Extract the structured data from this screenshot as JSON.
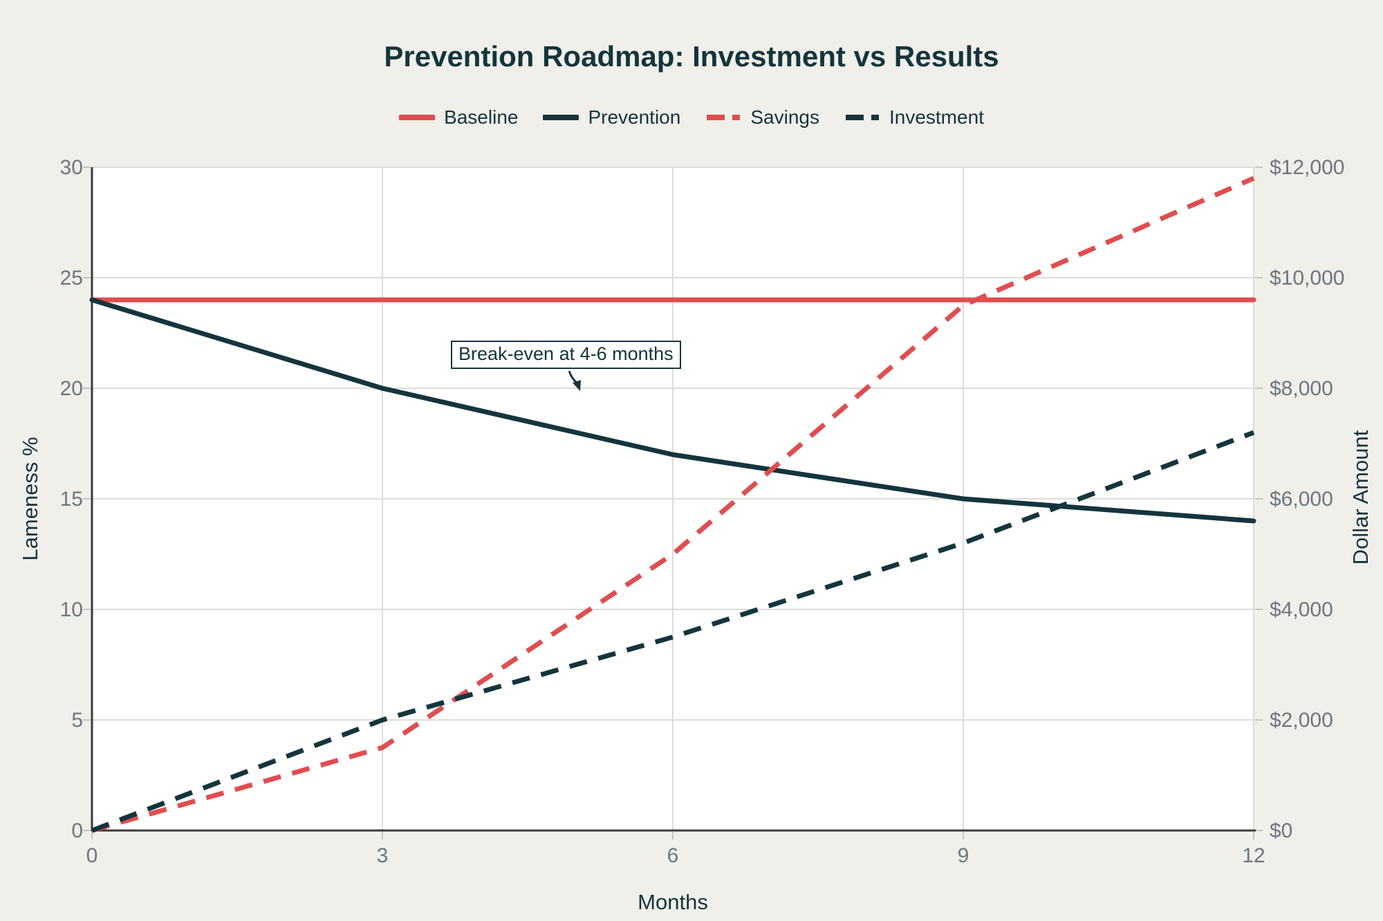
{
  "chart_data": {
    "type": "line",
    "title": "Prevention Roadmap: Investment vs Results",
    "xlabel": "Months",
    "x": [
      0,
      3,
      6,
      9,
      12
    ],
    "x_tick_labels": [
      "0",
      "3",
      "6",
      "9",
      "12"
    ],
    "left_axis": {
      "label": "Lameness %",
      "min": 0,
      "max": 30,
      "tick_labels": [
        "0",
        "5",
        "10",
        "15",
        "20",
        "25",
        "30"
      ]
    },
    "right_axis": {
      "label": "Dollar Amount",
      "min": 0,
      "max": 12000,
      "tick_labels": [
        "$0",
        "$2,000",
        "$4,000",
        "$6,000",
        "$8,000",
        "$10,000",
        "$12,000"
      ]
    },
    "series": [
      {
        "name": "Baseline",
        "axis": "left",
        "style": "solid",
        "color": "#e04d4f",
        "values": [
          24,
          24,
          24,
          24,
          24
        ]
      },
      {
        "name": "Prevention",
        "axis": "left",
        "style": "solid",
        "color": "#14353d",
        "values": [
          24,
          20,
          17,
          15,
          14
        ]
      },
      {
        "name": "Savings",
        "axis": "right",
        "style": "dashed",
        "color": "#e04d4f",
        "values": [
          0,
          1500,
          5000,
          9500,
          11800
        ]
      },
      {
        "name": "Investment",
        "axis": "right",
        "style": "dashed",
        "color": "#14353d",
        "values": [
          0,
          2000,
          3500,
          5200,
          7200
        ]
      }
    ],
    "annotation": {
      "text": "Break-even at 4-6 months"
    },
    "legend": [
      "Baseline",
      "Prevention",
      "Savings",
      "Investment"
    ],
    "legend_position": "top",
    "grid": true,
    "colors": {
      "background": "#f0efe9",
      "plot_background": "#ffffff",
      "grid": "#dcdcd8",
      "axis_spine": "#3a3a3a",
      "tick_stub": "#c4c4c2",
      "tick_text": "#6e767c",
      "text": "#14353d",
      "red": "#e04d4f",
      "dark": "#14353d"
    }
  }
}
